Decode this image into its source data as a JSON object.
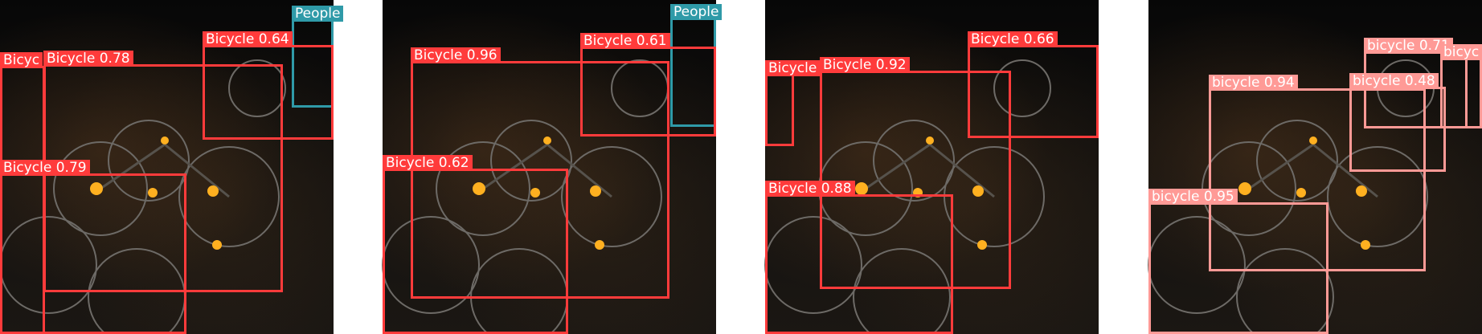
{
  "panels": [
    {
      "detections": [
        {
          "label": "People",
          "color": "cyan"
        },
        {
          "label": "Bicyc",
          "color": "red"
        },
        {
          "label": "Bicycle 0.78",
          "color": "red"
        },
        {
          "label": "Bicycle 0.64",
          "color": "red"
        },
        {
          "label": "Bicycle 0.79",
          "color": "red"
        }
      ]
    },
    {
      "detections": [
        {
          "label": "People",
          "color": "cyan"
        },
        {
          "label": "Bicycle 0.96",
          "color": "red"
        },
        {
          "label": "Bicycle 0.61",
          "color": "red"
        },
        {
          "label": "Bicycle 0.62",
          "color": "red"
        }
      ]
    },
    {
      "detections": [
        {
          "label": "Bicycle",
          "color": "red"
        },
        {
          "label": "Bicycle 0.92",
          "color": "red"
        },
        {
          "label": "Bicycle 0.66",
          "color": "red"
        },
        {
          "label": "Bicycle 0.88",
          "color": "red"
        }
      ]
    },
    {
      "detections": [
        {
          "label": "bicycle 0.71",
          "color": "pink"
        },
        {
          "label": "bicyc",
          "color": "pink"
        },
        {
          "label": "bicycle 0.94",
          "color": "pink"
        },
        {
          "label": "bicycle 0.48",
          "color": "pink"
        },
        {
          "label": "bicycle 0.95",
          "color": "pink"
        }
      ]
    }
  ]
}
